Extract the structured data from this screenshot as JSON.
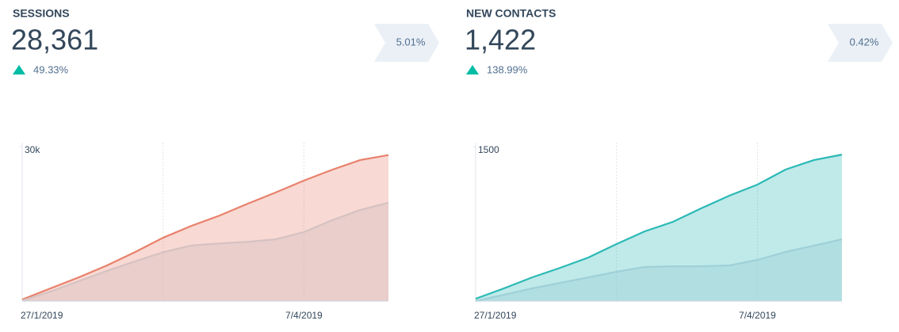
{
  "chart_data": [
    {
      "type": "area",
      "title": "SESSIONS",
      "total": "28,361",
      "change": "49.33%",
      "rate": "5.01%",
      "categories": [
        "27/1/2019",
        null,
        null,
        null,
        null,
        null,
        null,
        null,
        null,
        null,
        "7/4/2019",
        null,
        null,
        null
      ],
      "series": [
        {
          "color": "#e8816c",
          "values": [
            300,
            2460,
            4600,
            6900,
            9500,
            12300,
            14600,
            16600,
            18900,
            21100,
            23400,
            25500,
            27400,
            28361
          ]
        },
        {
          "color": "#d6c2c2",
          "values": [
            100,
            1850,
            3850,
            5850,
            7700,
            9500,
            10800,
            11200,
            11500,
            12000,
            13400,
            15700,
            17700,
            19100
          ]
        }
      ],
      "ylim": [
        0,
        30000
      ],
      "yticks": [
        {
          "value": 30000,
          "label": "30k"
        }
      ]
    },
    {
      "type": "area",
      "title": "NEW CONTACTS",
      "total": "1,422",
      "change": "138.99%",
      "rate": "0.42%",
      "categories": [
        "27/1/2019",
        null,
        null,
        null,
        null,
        null,
        null,
        null,
        null,
        null,
        "7/4/2019",
        null,
        null,
        null
      ],
      "series": [
        {
          "color": "#2bb9b6",
          "values": [
            23,
            123,
            230,
            323,
            423,
            554,
            677,
            769,
            900,
            1023,
            1131,
            1277,
            1369,
            1422
          ]
        },
        {
          "color": "#9fd0d8",
          "values": [
            0,
            62,
            123,
            177,
            230,
            285,
            331,
            338,
            338,
            346,
            400,
            477,
            538,
            600
          ]
        }
      ],
      "ylim": [
        0,
        1500
      ],
      "yticks": [
        1500
      ]
    }
  ]
}
